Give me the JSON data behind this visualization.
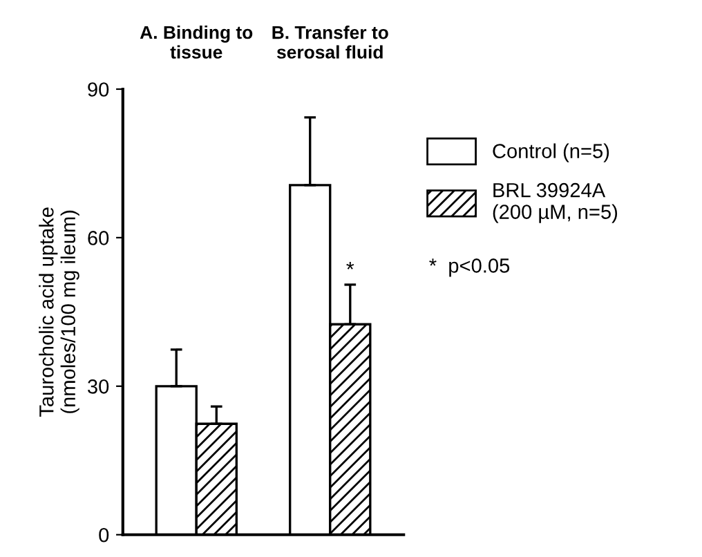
{
  "chart_data": {
    "type": "bar",
    "categories": [
      "A. Binding to\ntissue",
      "B. Transfer to\nserosal fluid"
    ],
    "ylabel": "Taurocholic acid uptake\n(nmoles/100 mg ileum)",
    "series": [
      {
        "name": "Control (n=5)",
        "color": "#ffffff",
        "values": [
          30,
          70.6
        ],
        "errors": [
          [
            30,
            37.4
          ],
          [
            70.6,
            84.3
          ]
        ]
      },
      {
        "name": "BRL 39924A\n(200 µM, n=5)",
        "color": "#000000",
        "values": [
          22.4,
          42.5
        ],
        "errors": [
          [
            22.4,
            25.9
          ],
          [
            42.5,
            50.5
          ]
        ]
      }
    ],
    "annotations": [
      {
        "text": "*",
        "x": "B. Transfer to\nserosal fluid",
        "y": 50.5
      },
      "*  p<0.05"
    ],
    "ylim": [
      0,
      90
    ],
    "yticks": [
      0,
      30,
      60,
      90
    ],
    "grid": false,
    "legend": "right"
  }
}
